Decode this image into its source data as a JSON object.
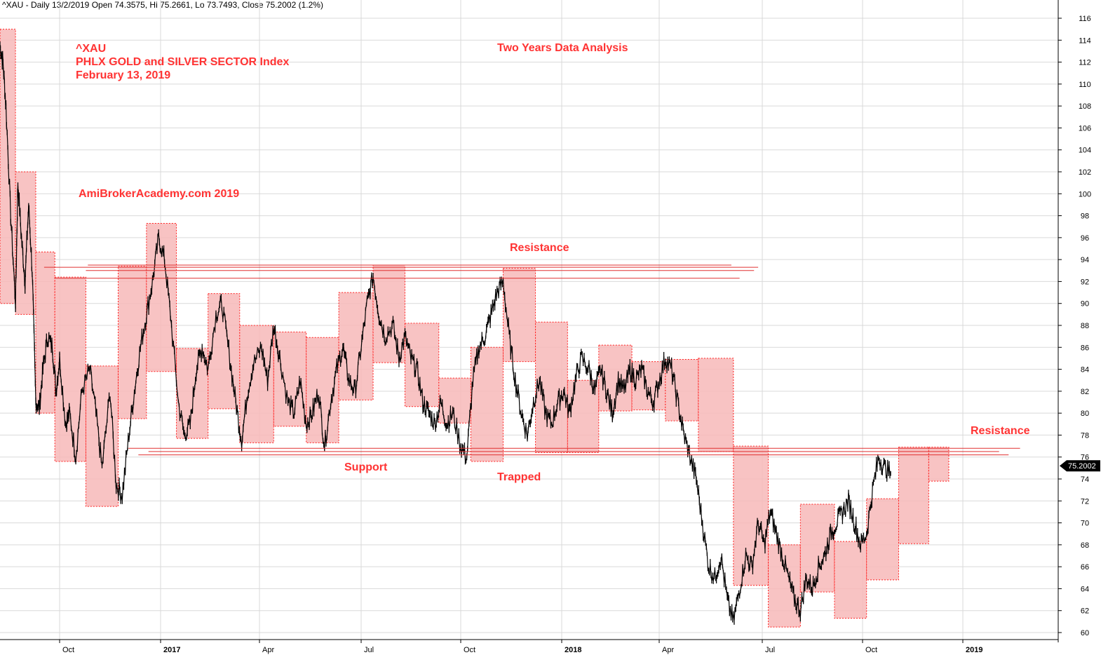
{
  "header": "^XAU - Daily 13/2/2019 Open 74.3575, Hi 75.2661, Lo 73.7493, Close 75.2002 (1.2%)",
  "last_price_label": "75.2002",
  "colors": {
    "annotation": "#ff3333",
    "box_fill": "#f7b9b9",
    "box_border": "#ff2020",
    "line": "#e03030",
    "candle": "#000000",
    "grid": "#d9d9d9"
  },
  "annotations": {
    "ticker": "^XAU",
    "name": "PHLX GOLD and SILVER SECTOR Index",
    "date": "February 13, 2019",
    "analysis": "Two Years Data Analysis",
    "site": "AmiBrokerAcademy.com  2019",
    "resistance_top": "Resistance",
    "support": "Support",
    "trapped": "Trapped",
    "resistance_right": "Resistance"
  },
  "chart_data": {
    "type": "line",
    "y_ticks": [
      60,
      62,
      64,
      66,
      68,
      70,
      72,
      74,
      76,
      78,
      80,
      82,
      84,
      86,
      88,
      90,
      92,
      94,
      96,
      98,
      100,
      102,
      104,
      106,
      108,
      110,
      112,
      114,
      116
    ],
    "ylim": [
      59.6,
      117
    ],
    "x_ticks": [
      {
        "label": "Oct",
        "t": 1.0,
        "bold": false
      },
      {
        "label": "2017",
        "t": 2.0,
        "bold": true
      },
      {
        "label": "Apr",
        "t": 3.0,
        "bold": false
      },
      {
        "label": "Jul",
        "t": 4.0,
        "bold": false
      },
      {
        "label": "Oct",
        "t": 5.0,
        "bold": false
      },
      {
        "label": "2018",
        "t": 6.0,
        "bold": true
      },
      {
        "label": "Apr",
        "t": 7.0,
        "bold": false
      },
      {
        "label": "Jul",
        "t": 8.0,
        "bold": false
      },
      {
        "label": "Oct",
        "t": 9.0,
        "bold": false
      },
      {
        "label": "2019",
        "t": 10.0,
        "bold": true
      }
    ],
    "xlim": [
      0.0,
      11.0
    ],
    "price_anchors": [
      [
        0.0,
        113.5
      ],
      [
        0.05,
        112
      ],
      [
        0.1,
        108
      ],
      [
        0.18,
        98
      ],
      [
        0.26,
        90
      ],
      [
        0.3,
        101
      ],
      [
        0.36,
        96
      ],
      [
        0.42,
        92
      ],
      [
        0.48,
        99
      ],
      [
        0.54,
        93
      ],
      [
        0.6,
        81
      ],
      [
        0.66,
        80.5
      ],
      [
        0.72,
        84
      ],
      [
        0.8,
        87
      ],
      [
        0.88,
        86
      ],
      [
        0.94,
        82
      ],
      [
        1.0,
        85
      ],
      [
        1.06,
        79
      ],
      [
        1.1,
        80
      ],
      [
        1.16,
        76
      ],
      [
        1.22,
        82
      ],
      [
        1.3,
        84
      ],
      [
        1.36,
        80
      ],
      [
        1.42,
        75
      ],
      [
        1.5,
        82
      ],
      [
        1.56,
        73.5
      ],
      [
        1.62,
        72.5
      ],
      [
        1.68,
        77.5
      ],
      [
        1.74,
        82
      ],
      [
        1.8,
        86
      ],
      [
        1.86,
        89
      ],
      [
        1.92,
        92
      ],
      [
        1.98,
        96
      ],
      [
        2.04,
        94
      ],
      [
        2.1,
        89
      ],
      [
        2.18,
        81
      ],
      [
        2.24,
        78
      ],
      [
        2.3,
        79
      ],
      [
        2.36,
        84
      ],
      [
        2.42,
        86
      ],
      [
        2.48,
        84
      ],
      [
        2.56,
        89
      ],
      [
        2.62,
        90
      ],
      [
        2.7,
        85
      ],
      [
        2.76,
        81
      ],
      [
        2.82,
        77.5
      ],
      [
        2.88,
        82
      ],
      [
        2.94,
        84.5
      ],
      [
        3.02,
        86
      ],
      [
        3.08,
        83
      ],
      [
        3.14,
        88
      ],
      [
        3.2,
        85
      ],
      [
        3.28,
        81
      ],
      [
        3.34,
        80
      ],
      [
        3.4,
        83
      ],
      [
        3.46,
        79
      ],
      [
        3.52,
        80
      ],
      [
        3.58,
        82
      ],
      [
        3.64,
        77
      ],
      [
        3.7,
        81
      ],
      [
        3.76,
        84
      ],
      [
        3.82,
        86
      ],
      [
        3.88,
        83
      ],
      [
        3.94,
        82
      ],
      [
        4.0,
        86
      ],
      [
        4.06,
        90
      ],
      [
        4.12,
        92.5
      ],
      [
        4.18,
        89
      ],
      [
        4.24,
        87
      ],
      [
        4.32,
        88
      ],
      [
        4.38,
        85
      ],
      [
        4.44,
        87
      ],
      [
        4.5,
        85
      ],
      [
        4.56,
        84
      ],
      [
        4.62,
        81
      ],
      [
        4.68,
        80
      ],
      [
        4.74,
        79
      ],
      [
        4.8,
        81
      ],
      [
        4.86,
        79
      ],
      [
        4.92,
        80
      ],
      [
        5.0,
        77
      ],
      [
        5.06,
        76
      ],
      [
        5.12,
        83
      ],
      [
        5.18,
        86
      ],
      [
        5.24,
        87
      ],
      [
        5.3,
        89
      ],
      [
        5.36,
        91
      ],
      [
        5.42,
        92
      ],
      [
        5.48,
        87
      ],
      [
        5.54,
        83
      ],
      [
        5.6,
        80
      ],
      [
        5.66,
        78
      ],
      [
        5.72,
        81
      ],
      [
        5.78,
        83
      ],
      [
        5.84,
        80
      ],
      [
        5.9,
        79
      ],
      [
        5.96,
        81
      ],
      [
        6.02,
        82
      ],
      [
        6.08,
        80
      ],
      [
        6.14,
        83
      ],
      [
        6.2,
        85
      ],
      [
        6.28,
        84
      ],
      [
        6.34,
        82
      ],
      [
        6.4,
        84
      ],
      [
        6.46,
        82
      ],
      [
        6.52,
        80
      ],
      [
        6.58,
        83
      ],
      [
        6.64,
        82
      ],
      [
        6.7,
        84
      ],
      [
        6.76,
        83
      ],
      [
        6.82,
        84
      ],
      [
        6.88,
        82
      ],
      [
        6.94,
        81
      ],
      [
        7.0,
        83
      ],
      [
        7.06,
        85
      ],
      [
        7.12,
        84
      ],
      [
        7.18,
        81
      ],
      [
        7.24,
        78
      ],
      [
        7.3,
        76
      ],
      [
        7.36,
        74
      ],
      [
        7.42,
        70
      ],
      [
        7.48,
        66
      ],
      [
        7.54,
        65
      ],
      [
        7.6,
        67
      ],
      [
        7.66,
        63
      ],
      [
        7.72,
        61
      ],
      [
        7.78,
        64
      ],
      [
        7.84,
        67
      ],
      [
        7.9,
        66
      ],
      [
        7.96,
        70
      ],
      [
        8.02,
        68
      ],
      [
        8.08,
        71
      ],
      [
        8.14,
        69
      ],
      [
        8.2,
        67
      ],
      [
        8.26,
        65
      ],
      [
        8.32,
        63
      ],
      [
        8.38,
        62
      ],
      [
        8.44,
        65
      ],
      [
        8.5,
        64
      ],
      [
        8.56,
        66
      ],
      [
        8.62,
        67
      ],
      [
        8.68,
        69
      ],
      [
        8.74,
        70
      ],
      [
        8.8,
        71
      ],
      [
        8.86,
        72
      ],
      [
        8.92,
        70
      ],
      [
        8.98,
        68
      ],
      [
        9.04,
        69
      ],
      [
        9.1,
        73
      ],
      [
        9.16,
        76
      ],
      [
        9.22,
        75
      ],
      [
        9.28,
        74.5
      ]
    ],
    "boxes": [
      {
        "t0": 0.0,
        "t1": 0.26,
        "low": 90,
        "high": 115
      },
      {
        "t0": 0.26,
        "t1": 0.6,
        "low": 89,
        "high": 102
      },
      {
        "t0": 0.6,
        "t1": 0.92,
        "low": 80,
        "high": 94.7
      },
      {
        "t0": 0.92,
        "t1": 1.26,
        "low": 75.6,
        "high": 92.4
      },
      {
        "t0": 1.26,
        "t1": 1.58,
        "low": 71.5,
        "high": 84.3
      },
      {
        "t0": 1.58,
        "t1": 1.86,
        "low": 79.5,
        "high": 93.4
      },
      {
        "t0": 1.86,
        "t1": 2.16,
        "low": 83.8,
        "high": 97.3
      },
      {
        "t0": 2.16,
        "t1": 2.48,
        "low": 77.7,
        "high": 85.9
      },
      {
        "t0": 2.48,
        "t1": 2.8,
        "low": 80.4,
        "high": 90.9
      },
      {
        "t0": 2.8,
        "t1": 3.14,
        "low": 77.3,
        "high": 88
      },
      {
        "t0": 3.14,
        "t1": 3.46,
        "low": 78.8,
        "high": 87.4
      },
      {
        "t0": 3.46,
        "t1": 3.78,
        "low": 77.3,
        "high": 86.9
      },
      {
        "t0": 3.78,
        "t1": 4.12,
        "low": 81.2,
        "high": 91
      },
      {
        "t0": 4.12,
        "t1": 4.44,
        "low": 84.6,
        "high": 93.5
      },
      {
        "t0": 4.44,
        "t1": 4.78,
        "low": 80.6,
        "high": 88.2
      },
      {
        "t0": 4.78,
        "t1": 5.1,
        "low": 79.1,
        "high": 83.2
      },
      {
        "t0": 5.1,
        "t1": 5.42,
        "low": 75.6,
        "high": 86
      },
      {
        "t0": 5.42,
        "t1": 5.74,
        "low": 84.7,
        "high": 93.2
      },
      {
        "t0": 5.74,
        "t1": 6.06,
        "low": 76.4,
        "high": 88.3
      },
      {
        "t0": 6.06,
        "t1": 6.38,
        "low": 76.4,
        "high": 83
      },
      {
        "t0": 6.38,
        "t1": 6.72,
        "low": 80.2,
        "high": 86.2
      },
      {
        "t0": 6.72,
        "t1": 7.06,
        "low": 80.3,
        "high": 84.7
      },
      {
        "t0": 7.06,
        "t1": 7.38,
        "low": 79.3,
        "high": 84.9
      },
      {
        "t0": 7.38,
        "t1": 7.72,
        "low": 76.5,
        "high": 85
      },
      {
        "t0": 7.72,
        "t1": 8.06,
        "low": 64.3,
        "high": 77
      },
      {
        "t0": 8.06,
        "t1": 8.38,
        "low": 60.5,
        "high": 68
      },
      {
        "t0": 8.38,
        "t1": 8.72,
        "low": 63.7,
        "high": 71.7
      },
      {
        "t0": 8.72,
        "t1": 9.04,
        "low": 61.3,
        "high": 68.3
      },
      {
        "t0": 9.04,
        "t1": 9.36,
        "low": 64.8,
        "high": 72.2
      },
      {
        "t0": 9.36,
        "t1": 9.66,
        "low": 68.1,
        "high": 76.9
      },
      {
        "t0": 9.66,
        "t1": 9.86,
        "low": 73.8,
        "high": 76.9
      }
    ],
    "resistance_lines": [
      {
        "t0": 0.74,
        "t1": 7.96,
        "y": 93.3
      },
      {
        "t0": 1.28,
        "t1": 7.7,
        "y": 93.5
      },
      {
        "t0": 1.26,
        "t1": 7.92,
        "y": 93.0
      },
      {
        "t0": 0.92,
        "t1": 7.78,
        "y": 92.3
      }
    ],
    "support_lines": [
      {
        "t0": 1.68,
        "t1": 10.6,
        "y": 76.8
      },
      {
        "t0": 1.88,
        "t1": 10.38,
        "y": 76.5
      },
      {
        "t0": 1.78,
        "t1": 10.48,
        "y": 76.2
      }
    ]
  }
}
